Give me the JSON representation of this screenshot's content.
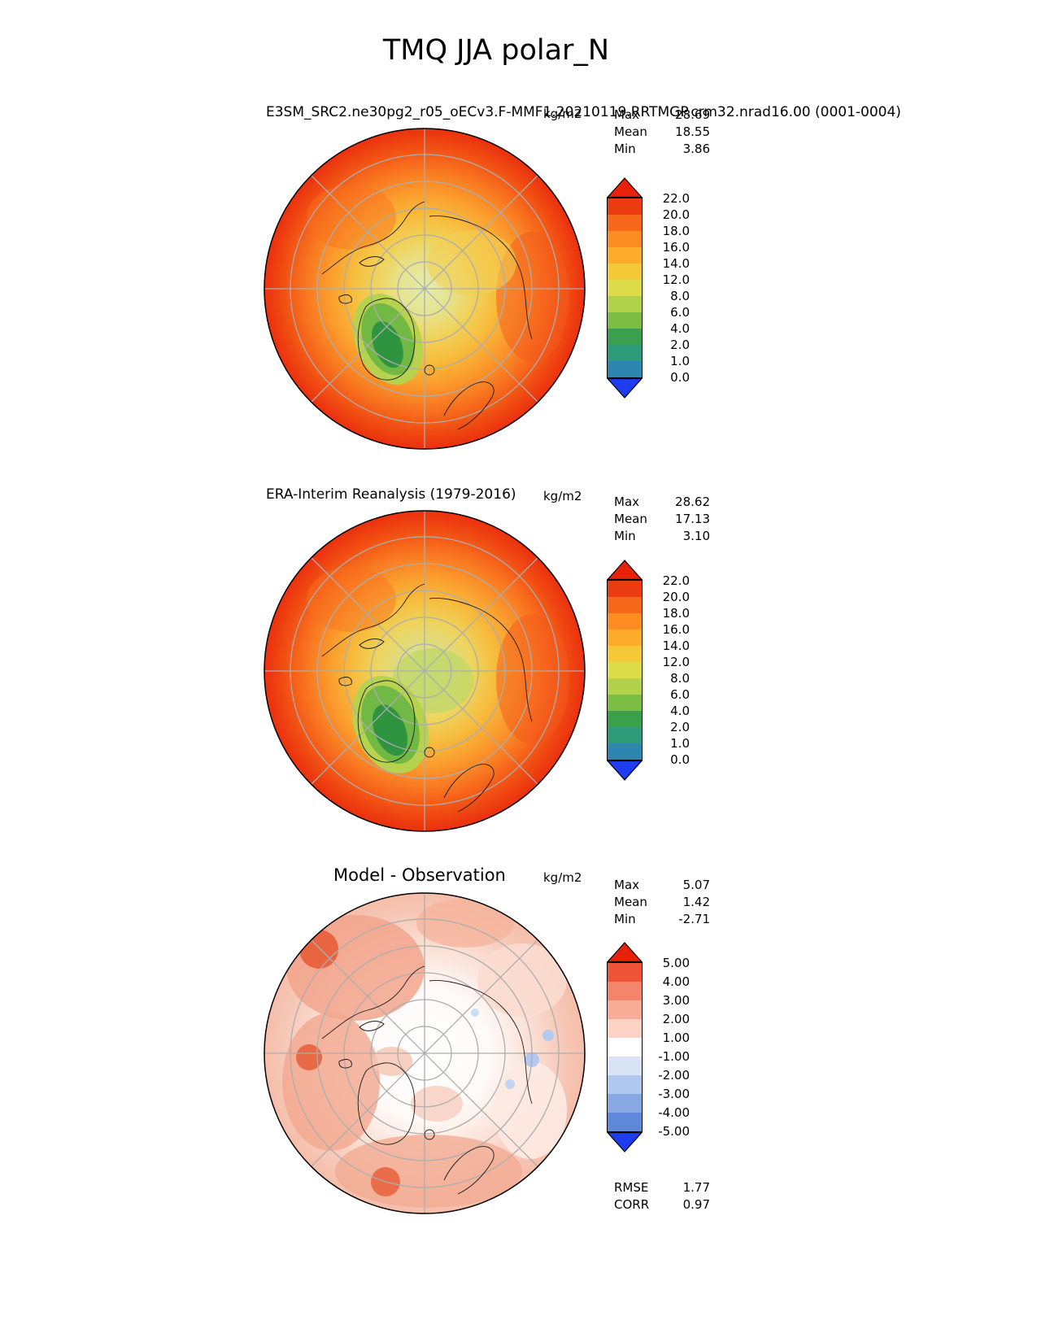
{
  "title": "TMQ JJA polar_N",
  "panels": [
    {
      "name": "model",
      "title": "E3SM_SRC2.ne30pg2_r05_oECv3.F-MMF1.20210119.RRTMGP.crm32.nrad16.00 (0001-0004)",
      "units": "kg/m2",
      "stats": [
        {
          "label": "Max",
          "value": "28.69"
        },
        {
          "label": "Mean",
          "value": "18.55"
        },
        {
          "label": "Min",
          "value": "3.86"
        }
      ]
    },
    {
      "name": "observation",
      "title": "ERA-Interim Reanalysis (1979-2016)",
      "units": "kg/m2",
      "stats": [
        {
          "label": "Max",
          "value": "28.62"
        },
        {
          "label": "Mean",
          "value": "17.13"
        },
        {
          "label": "Min",
          "value": "3.10"
        }
      ]
    },
    {
      "name": "difference",
      "title": "Model - Observation",
      "units": "kg/m2",
      "stats": [
        {
          "label": "Max",
          "value": "5.07"
        },
        {
          "label": "Mean",
          "value": "1.42"
        },
        {
          "label": "Min",
          "value": "-2.71"
        }
      ],
      "extra_stats": [
        {
          "label": "RMSE",
          "value": "1.77"
        },
        {
          "label": "CORR",
          "value": "0.97"
        }
      ]
    }
  ],
  "colorbars": {
    "absolute": {
      "extend_top": "#e8210a",
      "colors": [
        "#ec3c12",
        "#f8681a",
        "#fd8d22",
        "#feab2c",
        "#f5c838",
        "#dcdc48",
        "#b2d24a",
        "#7cbe44",
        "#3aa04e",
        "#2d9a78",
        "#2e86b0"
      ],
      "extend_bottom": "#1e3cf0",
      "labels": [
        "22.0",
        "20.0",
        "18.0",
        "16.0",
        "14.0",
        "12.0",
        "8.0",
        "6.0",
        "4.0",
        "2.0",
        "1.0",
        "0.0"
      ]
    },
    "diff": {
      "extend_top": "#e8210a",
      "colors": [
        "#ef5338",
        "#f4846a",
        "#f8ab97",
        "#fcd2c5",
        "#ffffff",
        "#d8e4f6",
        "#b0c8ee",
        "#88a8e4",
        "#5f87da"
      ],
      "extend_bottom": "#1e3cf0",
      "labels": [
        "5.00",
        "4.00",
        "3.00",
        "2.00",
        "1.00",
        "-1.00",
        "-2.00",
        "-3.00",
        "-4.00",
        "-5.00"
      ]
    }
  },
  "chart_data": [
    {
      "type": "heatmap",
      "subtype": "polar_contour_map",
      "projection": "north_polar_stereographic",
      "title": "E3SM_SRC2.ne30pg2_r05_oECv3.F-MMF1.20210119.RRTMGP.crm32.nrad16.00 (0001-0004)",
      "variable": "TMQ",
      "season": "JJA",
      "units": "kg/m2",
      "stats": {
        "max": 28.69,
        "mean": 18.55,
        "min": 3.86
      },
      "levels": [
        0.0,
        1.0,
        2.0,
        4.0,
        6.0,
        8.0,
        12.0,
        14.0,
        16.0,
        18.0,
        20.0,
        22.0
      ],
      "colorbar_extend": "both",
      "legend_position": "right"
    },
    {
      "type": "heatmap",
      "subtype": "polar_contour_map",
      "projection": "north_polar_stereographic",
      "title": "ERA-Interim Reanalysis (1979-2016)",
      "variable": "TMQ",
      "season": "JJA",
      "units": "kg/m2",
      "stats": {
        "max": 28.62,
        "mean": 17.13,
        "min": 3.1
      },
      "levels": [
        0.0,
        1.0,
        2.0,
        4.0,
        6.0,
        8.0,
        12.0,
        14.0,
        16.0,
        18.0,
        20.0,
        22.0
      ],
      "colorbar_extend": "both",
      "legend_position": "right"
    },
    {
      "type": "heatmap",
      "subtype": "polar_contour_map",
      "projection": "north_polar_stereographic",
      "title": "Model - Observation",
      "variable": "TMQ",
      "season": "JJA",
      "units": "kg/m2",
      "stats": {
        "max": 5.07,
        "mean": 1.42,
        "min": -2.71,
        "rmse": 1.77,
        "corr": 0.97
      },
      "levels": [
        -5.0,
        -4.0,
        -3.0,
        -2.0,
        -1.0,
        1.0,
        2.0,
        3.0,
        4.0,
        5.0
      ],
      "colorbar_extend": "both",
      "legend_position": "right"
    }
  ]
}
